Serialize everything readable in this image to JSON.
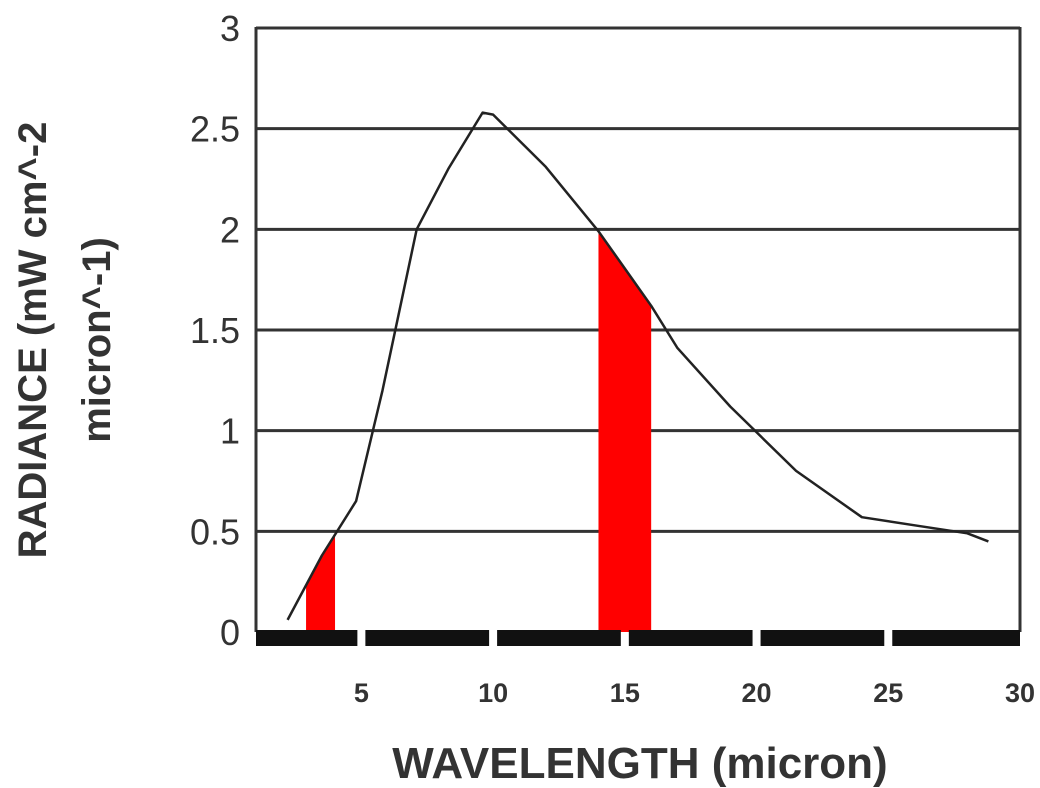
{
  "chart_data": {
    "type": "line",
    "title": "",
    "xlabel": "WAVELENGTH (micron)",
    "ylabel_lines": [
      "RADIANCE (mW cm^-2",
      "micron^-1)"
    ],
    "xlim": [
      1,
      30
    ],
    "ylim": [
      0,
      3
    ],
    "x_ticks": [
      5,
      10,
      15,
      20,
      25,
      30
    ],
    "x_tick_labels": [
      "5",
      "10",
      "15",
      "20",
      "25",
      "30"
    ],
    "y_ticks": [
      0,
      0.5,
      1,
      1.5,
      2,
      2.5,
      3
    ],
    "y_tick_labels": [
      "0",
      "0.5",
      "1",
      "1.5",
      "2",
      "2.5",
      "3"
    ],
    "grid": "horizontal",
    "series": [
      {
        "x": [
          2.2,
          3.5,
          4.8,
          5.8,
          7.1,
          8.3,
          9.6,
          10.0,
          12.0,
          14.0,
          16.0,
          17.0,
          19.0,
          21.5,
          24.0,
          26.0,
          28.0,
          28.8
        ],
        "y": [
          0.06,
          0.38,
          0.65,
          1.2,
          2.0,
          2.3,
          2.58,
          2.57,
          2.31,
          1.99,
          1.62,
          1.41,
          1.12,
          0.8,
          0.57,
          0.53,
          0.49,
          0.45
        ]
      }
    ],
    "highlighted_bands": [
      {
        "from": 2.9,
        "to": 4.0
      },
      {
        "from": 14.0,
        "to": 16.0
      }
    ],
    "colors": {
      "line": "#222222",
      "band": "#ff0000",
      "grid": "#333333",
      "axis_bar": "#111111",
      "text": "#333333"
    }
  }
}
